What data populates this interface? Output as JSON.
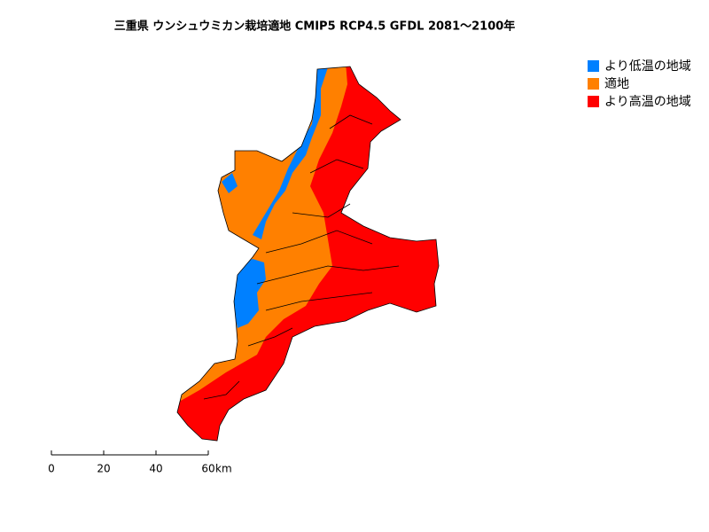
{
  "title": "三重県 ウンシュウミカン栽培適地 CMIP5 RCP4.5 GFDL 2081～2100年",
  "legend": [
    {
      "label": "より低温の地域",
      "color": "#0080ff"
    },
    {
      "label": "適地",
      "color": "#ff8000"
    },
    {
      "label": "より高温の地域",
      "color": "#ff0000"
    }
  ],
  "scale_bar": {
    "ticks": [
      0,
      20,
      40,
      60
    ],
    "unit": "km"
  }
}
